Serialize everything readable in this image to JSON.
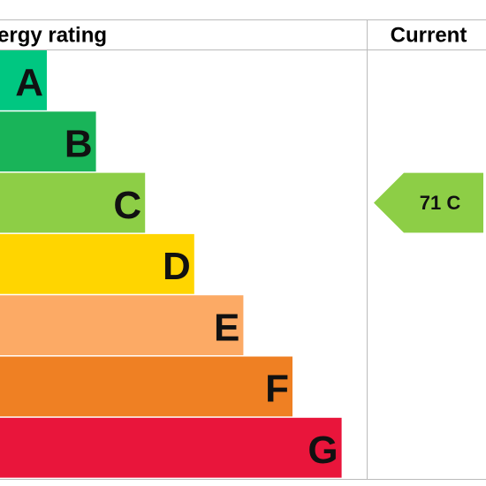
{
  "header": {
    "title": "ergy rating",
    "current": "Current"
  },
  "bands": [
    {
      "letter": "A",
      "color": "#00c781"
    },
    {
      "letter": "B",
      "color": "#19b459"
    },
    {
      "letter": "C",
      "color": "#8dce46"
    },
    {
      "letter": "D",
      "color": "#ffd500"
    },
    {
      "letter": "E",
      "color": "#fcaa65"
    },
    {
      "letter": "F",
      "color": "#ef8023"
    },
    {
      "letter": "G",
      "color": "#e9153b"
    }
  ],
  "current": {
    "label": "71 C",
    "color": "#8dce46"
  }
}
